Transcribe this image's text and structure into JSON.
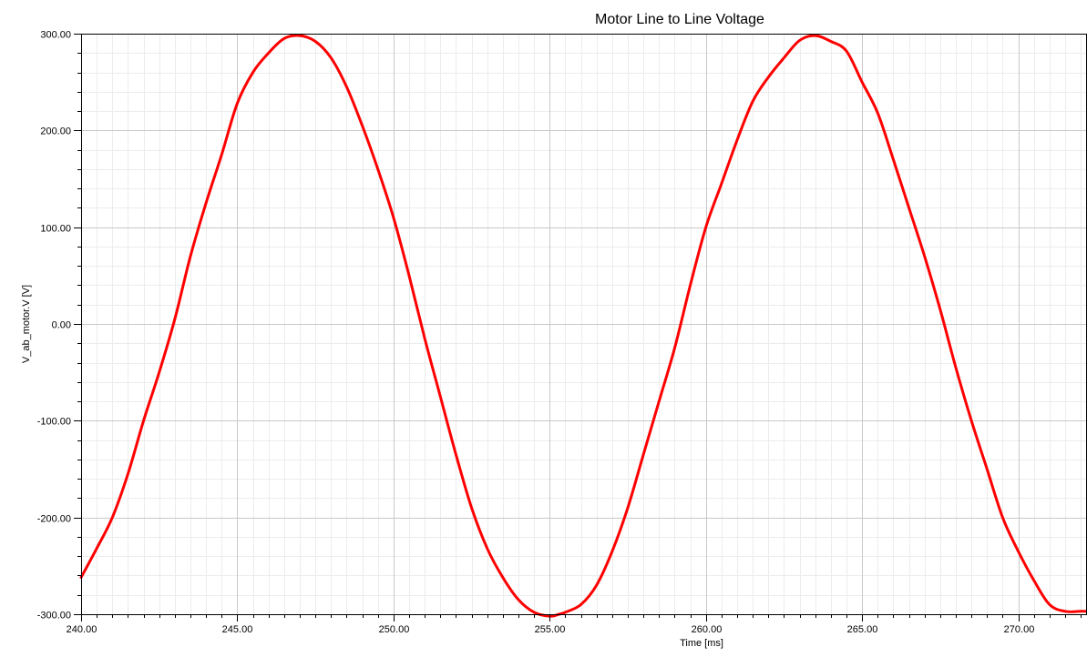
{
  "chart_data": {
    "type": "line",
    "title": "Motor Line to Line Voltage",
    "xlabel": "Time [ms]",
    "ylabel": "V_ab_motor.V [V]",
    "xlim": [
      240,
      272.2
    ],
    "ylim": [
      -300,
      300
    ],
    "x_ticks": [
      240,
      245,
      250,
      255,
      260,
      265,
      270
    ],
    "x_tick_labels": [
      "240.00",
      "245.00",
      "250.00",
      "255.00",
      "260.00",
      "265.00",
      "270.00"
    ],
    "y_ticks": [
      300,
      200,
      100,
      0,
      -100,
      -200,
      -300
    ],
    "y_tick_labels": [
      "300.00",
      "200.00",
      "100.00",
      "0.00",
      "-100.00",
      "-200.00",
      "-300.00"
    ],
    "grid": true,
    "legend": "none",
    "colors": {
      "series": "#ff0000",
      "major_grid": "#c8c8c8",
      "minor_grid": "#ececec"
    },
    "series": [
      {
        "x": [
          240.0,
          240.5,
          241.0,
          241.5,
          242.0,
          242.5,
          243.0,
          243.5,
          244.0,
          244.5,
          245.0,
          245.5,
          246.0,
          246.5,
          247.0,
          247.5,
          248.0,
          248.5,
          249.0,
          249.5,
          250.0,
          250.5,
          251.0,
          251.5,
          252.0,
          252.5,
          253.0,
          253.5,
          254.0,
          254.5,
          255.0,
          255.3,
          255.5,
          256.0,
          256.5,
          257.0,
          257.5,
          258.0,
          258.5,
          259.0,
          259.5,
          260.0,
          260.5,
          261.0,
          261.5,
          262.0,
          262.5,
          263.0,
          263.5,
          264.0,
          264.5,
          265.0,
          265.5,
          266.0,
          266.5,
          267.0,
          267.5,
          268.0,
          268.5,
          269.0,
          269.5,
          270.0,
          270.5,
          271.0,
          271.5,
          272.0,
          272.2
        ],
        "y": [
          -262,
          -232,
          -200,
          -155,
          -100,
          -50,
          5,
          70,
          125,
          175,
          228,
          260,
          280,
          295,
          298,
          292,
          275,
          245,
          205,
          160,
          110,
          50,
          -15,
          -75,
          -135,
          -190,
          -232,
          -262,
          -285,
          -298,
          -302,
          -300,
          -298,
          -290,
          -270,
          -235,
          -190,
          -135,
          -80,
          -25,
          40,
          100,
          145,
          190,
          230,
          255,
          275,
          293,
          298,
          292,
          282,
          250,
          218,
          170,
          120,
          70,
          15,
          -45,
          -100,
          -150,
          -200,
          -235,
          -265,
          -290,
          -297,
          -297,
          -297
        ]
      }
    ]
  }
}
